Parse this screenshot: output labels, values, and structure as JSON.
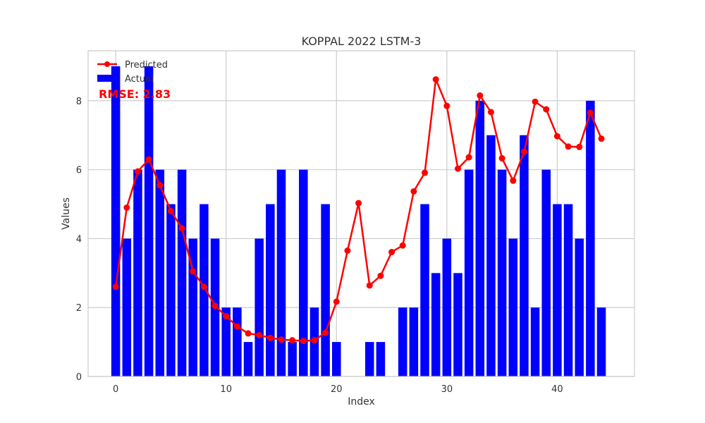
{
  "chart_data": {
    "type": "bar",
    "title": "KOPPAL 2022 LSTM-3",
    "xlabel": "Index",
    "ylabel": "Values",
    "xlim": [
      -2.5,
      47
    ],
    "ylim": [
      0,
      9.45
    ],
    "xticks": [
      0,
      10,
      20,
      30,
      40
    ],
    "yticks": [
      0,
      2,
      4,
      6,
      8
    ],
    "grid": true,
    "legend_position": "top-left",
    "annotation": "RMSE: 2.83",
    "series": [
      {
        "name": "Actual",
        "type": "bar",
        "color": "#0000ff",
        "x": [
          0,
          1,
          2,
          3,
          4,
          5,
          6,
          7,
          8,
          9,
          10,
          11,
          12,
          13,
          14,
          15,
          16,
          17,
          18,
          19,
          20,
          21,
          22,
          23,
          24,
          25,
          26,
          27,
          28,
          29,
          30,
          31,
          32,
          33,
          34,
          35,
          36,
          37,
          38,
          39,
          40,
          41,
          42,
          43,
          44
        ],
        "values": [
          9,
          4,
          6,
          9,
          6,
          5,
          6,
          4,
          5,
          4,
          2,
          2,
          1,
          4,
          5,
          6,
          1,
          6,
          2,
          5,
          1,
          0,
          0,
          1,
          1,
          0,
          2,
          2,
          5,
          3,
          4,
          3,
          6,
          8,
          7,
          6,
          4,
          7,
          2,
          6,
          5,
          5,
          4,
          8,
          2
        ]
      },
      {
        "name": "Predicted",
        "type": "line",
        "color": "#ff0000",
        "x": [
          0,
          1,
          2,
          3,
          4,
          5,
          6,
          7,
          8,
          9,
          10,
          11,
          12,
          13,
          14,
          15,
          16,
          17,
          18,
          19,
          20,
          21,
          22,
          23,
          24,
          25,
          26,
          27,
          28,
          29,
          30,
          31,
          32,
          33,
          34,
          35,
          36,
          37,
          38,
          39,
          40,
          41,
          42,
          43,
          44
        ],
        "values": [
          2.6,
          4.9,
          5.95,
          6.3,
          5.55,
          4.8,
          4.3,
          3.05,
          2.6,
          2.05,
          1.75,
          1.45,
          1.25,
          1.2,
          1.12,
          1.07,
          1.05,
          1.03,
          1.05,
          1.27,
          2.17,
          3.65,
          5.03,
          2.64,
          2.92,
          3.61,
          3.8,
          5.37,
          5.91,
          8.62,
          7.85,
          6.03,
          6.36,
          8.15,
          7.67,
          6.33,
          5.68,
          6.52,
          7.97,
          7.75,
          6.97,
          6.67,
          6.66,
          7.65,
          6.9
        ]
      }
    ]
  }
}
